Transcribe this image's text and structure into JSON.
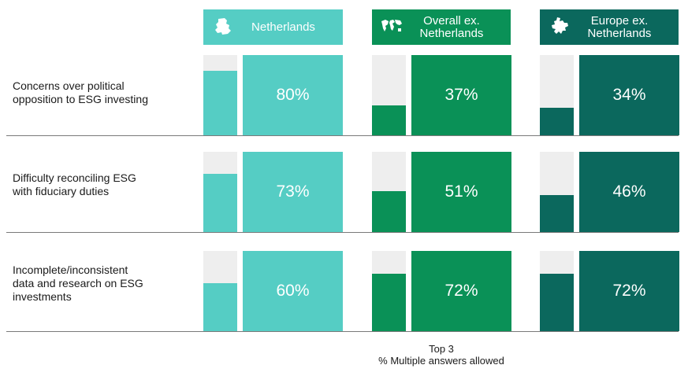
{
  "chart_data": {
    "type": "bar",
    "categories": [
      "Concerns over political\nopposition to ESG investing",
      "Difficulty reconciling ESG\nwith fiduciary duties",
      "Incomplete/inconsistent\ndata and research on ESG\ninvestments"
    ],
    "series": [
      {
        "name": "Netherlands",
        "values": [
          80,
          73,
          60
        ],
        "value_labels": [
          "80%",
          "73%",
          "60%"
        ],
        "color": "#55cdc4",
        "icon": "netherlands-map-icon"
      },
      {
        "name": "Overall ex.\nNetherlands",
        "values": [
          37,
          51,
          72
        ],
        "value_labels": [
          "37%",
          "51%",
          "72%"
        ],
        "color": "#0a9157",
        "icon": "world-map-icon"
      },
      {
        "name": "Europe ex.\nNetherlands",
        "values": [
          34,
          46,
          72
        ],
        "value_labels": [
          "34%",
          "46%",
          "72%"
        ],
        "color": "#0b685d",
        "icon": "europe-map-icon"
      }
    ],
    "ylim": [
      0,
      100
    ],
    "unit": "%",
    "footnote": [
      "Top 3",
      "% Multiple answers allowed"
    ],
    "background_bar_color": "#eeeeee"
  }
}
